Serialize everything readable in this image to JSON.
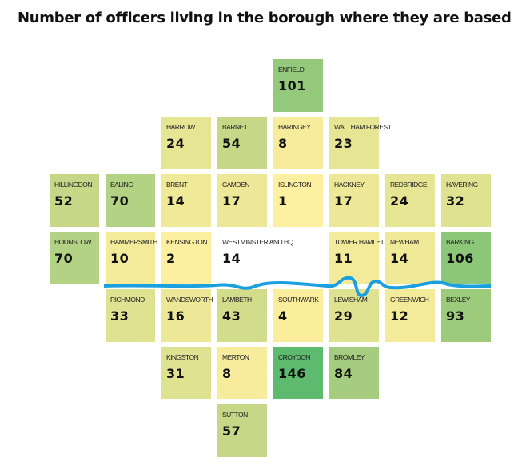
{
  "title": "Number of officers living in the borough where they are based",
  "boroughs": [
    {
      "name": "ENFIELD",
      "value": 101,
      "color": "#94c87a"
    },
    {
      "name": "HARROW",
      "value": 24,
      "color": "#e6e594"
    },
    {
      "name": "BARNET",
      "value": 54,
      "color": "#c6d888"
    },
    {
      "name": "HARINGEY",
      "value": 8,
      "color": "#f6ec9b"
    },
    {
      "name": "WALTHAM FOREST",
      "value": 23,
      "color": "#e6e594"
    },
    {
      "name": "HILLINGDON",
      "value": 52,
      "color": "#c6d888"
    },
    {
      "name": "EALING",
      "value": 70,
      "color": "#b4d283"
    },
    {
      "name": "BRENT",
      "value": 14,
      "color": "#f0e998"
    },
    {
      "name": "CAMDEN",
      "value": 17,
      "color": "#ede897"
    },
    {
      "name": "ISLINGTON",
      "value": 1,
      "color": "#fdf0a0"
    },
    {
      "name": "HACKNEY",
      "value": 17,
      "color": "#ede897"
    },
    {
      "name": "REDBRIDGE",
      "value": 24,
      "color": "#e6e594"
    },
    {
      "name": "HAVERING",
      "value": 32,
      "color": "#dfe291"
    },
    {
      "name": "HOUNSLOW",
      "value": 70,
      "color": "#b4d283"
    },
    {
      "name": "HAMMERSMITH",
      "value": 10,
      "color": "#f3eb99"
    },
    {
      "name": "KENSINGTON",
      "value": 2,
      "color": "#fcf0a0"
    },
    {
      "name": "WESTMINSTER AND HQ",
      "value": 14,
      "color": "#ffffff"
    },
    {
      "name": "TOWER HAMLETS",
      "value": 11,
      "color": "#f3eb99"
    },
    {
      "name": "NEWHAM",
      "value": 14,
      "color": "#f0e998"
    },
    {
      "name": "BARKING",
      "value": 106,
      "color": "#8cc678"
    },
    {
      "name": "RICHMOND",
      "value": 33,
      "color": "#dfe291"
    },
    {
      "name": "WANDSWORTH",
      "value": 16,
      "color": "#ede897"
    },
    {
      "name": "LAMBETH",
      "value": 43,
      "color": "#d2dd8c"
    },
    {
      "name": "SOUTHWARK",
      "value": 4,
      "color": "#faee9c"
    },
    {
      "name": "LEWISHAM",
      "value": 29,
      "color": "#dfe291"
    },
    {
      "name": "GREENWICH",
      "value": 12,
      "color": "#f3eb99"
    },
    {
      "name": "BEXLEY",
      "value": 93,
      "color": "#9ccb7c"
    },
    {
      "name": "KINGSTON",
      "value": 31,
      "color": "#dfe291"
    },
    {
      "name": "MERTON",
      "value": 8,
      "color": "#f6ec9b"
    },
    {
      "name": "CROYDON",
      "value": 146,
      "color": "#5dba6e"
    },
    {
      "name": "BROMLEY",
      "value": 84,
      "color": "#a6cd7f"
    },
    {
      "name": "SUTTON",
      "value": 57,
      "color": "#c6d888"
    }
  ]
}
